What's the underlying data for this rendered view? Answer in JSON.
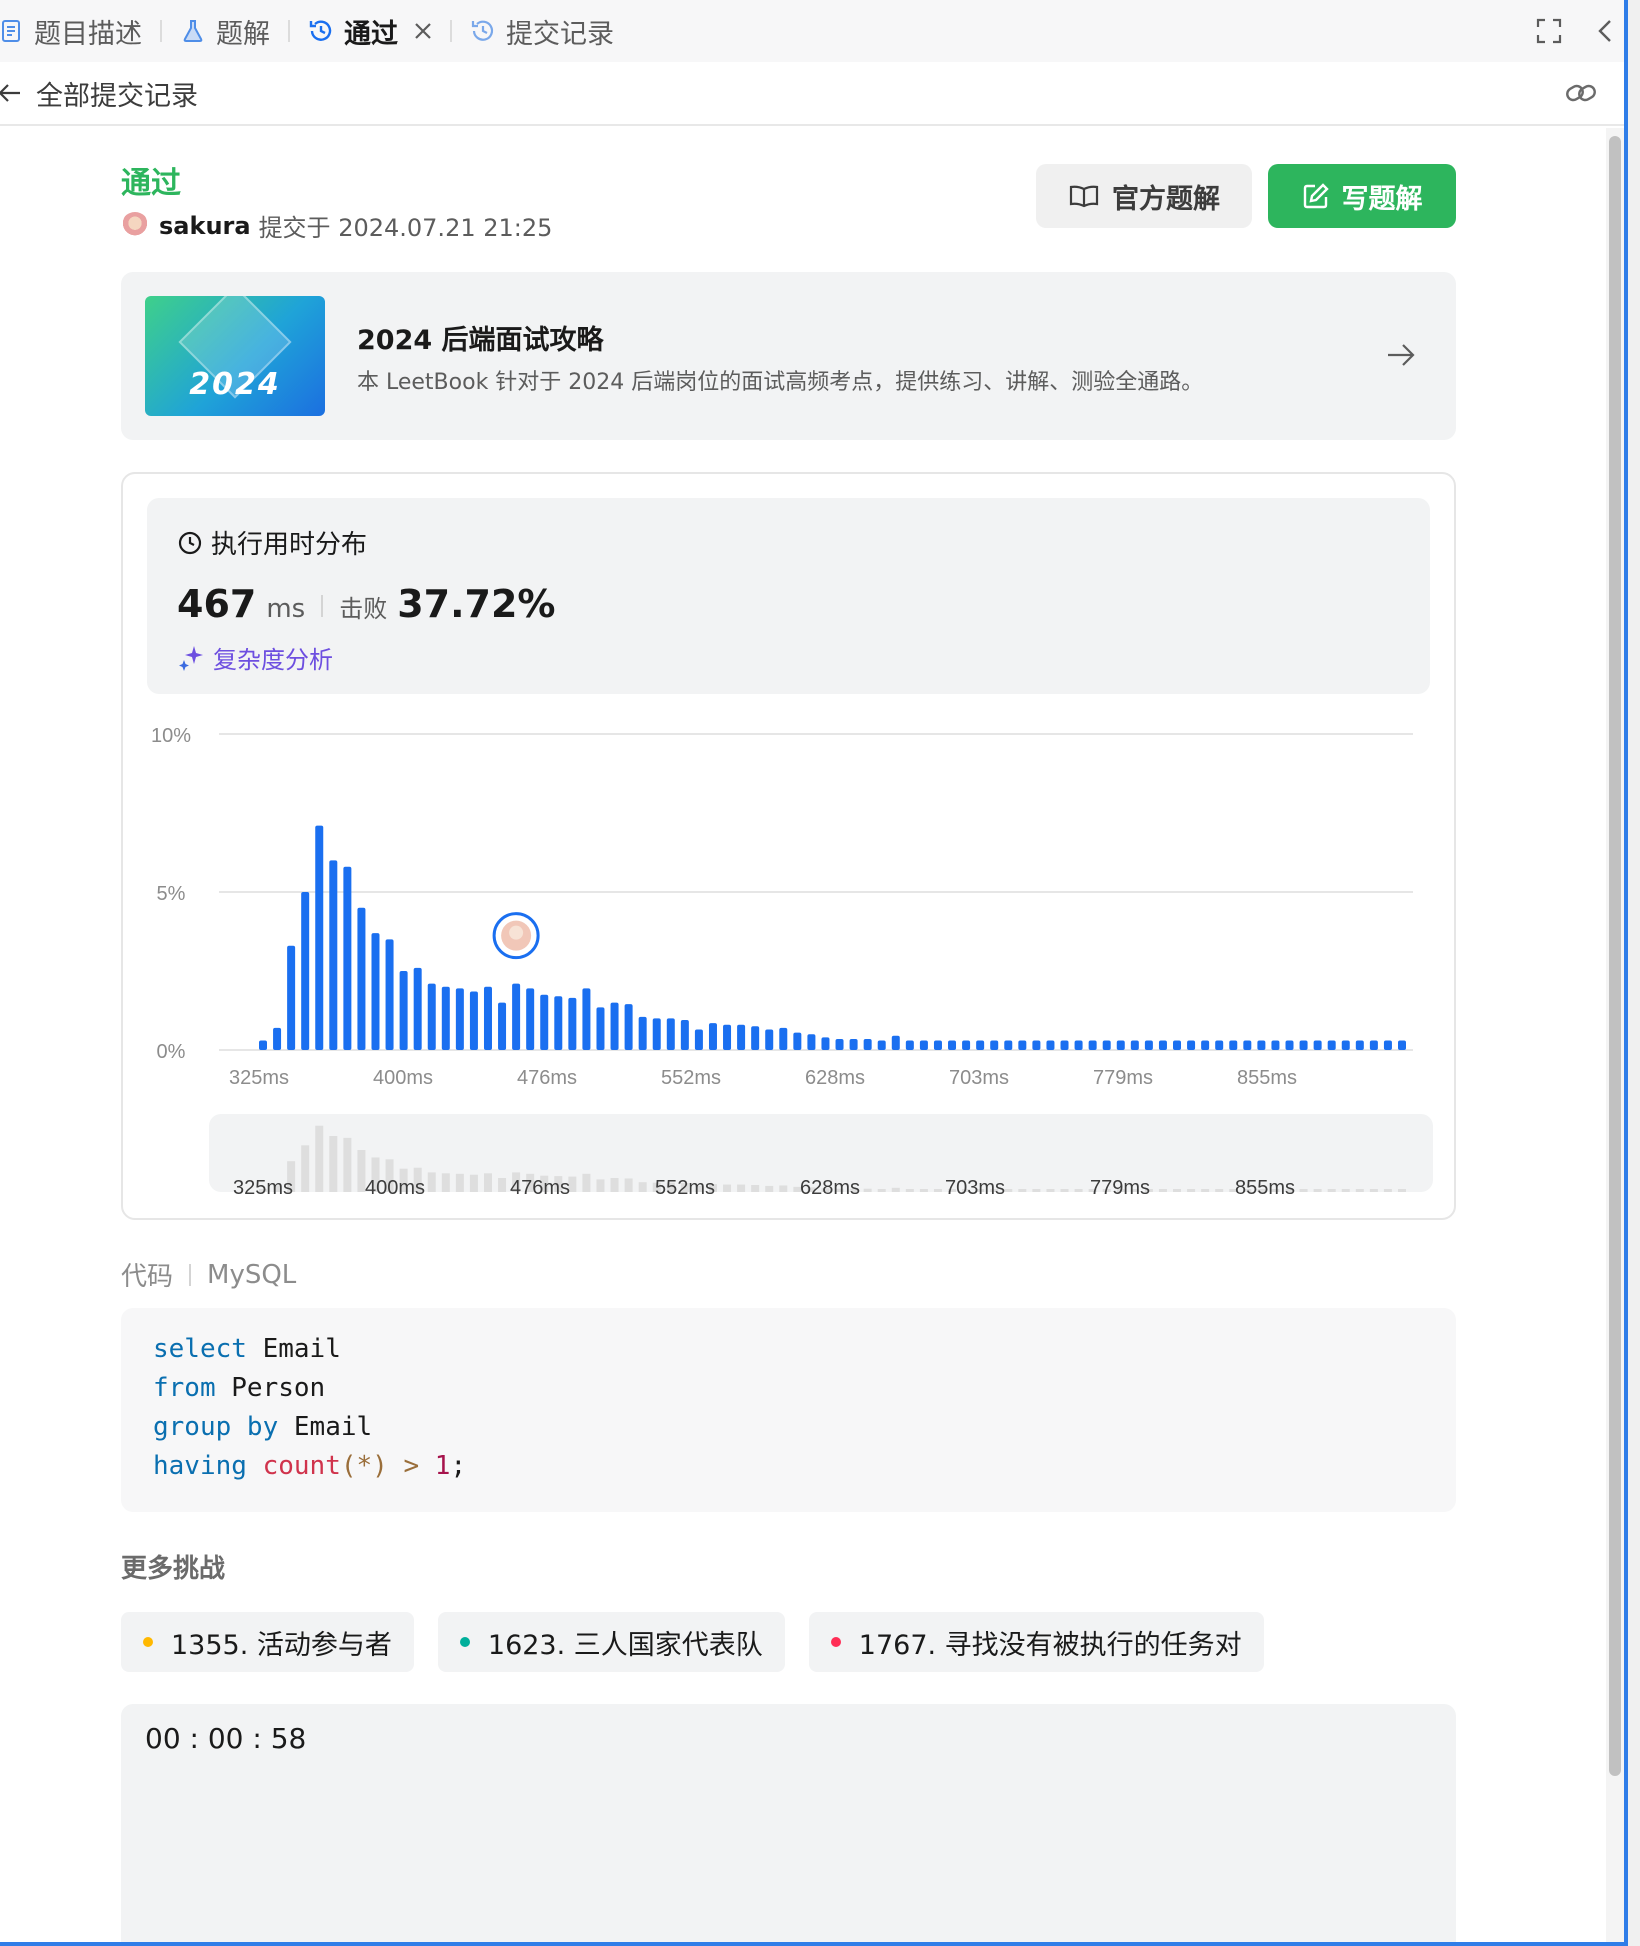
{
  "tabs": [
    {
      "label": "题目描述",
      "icon": "description-icon"
    },
    {
      "label": "题解",
      "icon": "flask-icon"
    },
    {
      "label": "通过",
      "icon": "history-icon",
      "active": true
    },
    {
      "label": "提交记录",
      "icon": "history-icon"
    }
  ],
  "subheader": {
    "back_label": "全部提交记录"
  },
  "submission": {
    "status": "通过",
    "username": "sakura",
    "submitted_text": "提交于 2024.07.21 21:25"
  },
  "buttons": {
    "official": "官方题解",
    "write": "写题解"
  },
  "banner": {
    "title": "2024 后端面试攻略",
    "description": "本 LeetBook 针对于 2024 后端岗位的面试高频考点，提供练习、讲解、测验全通路。",
    "cover_text": "2024"
  },
  "runtime": {
    "heading": "执行用时分布",
    "value": "467",
    "unit": "ms",
    "beat_label": "击败",
    "beat_value": "37.72%",
    "analysis_label": "复杂度分析"
  },
  "chart_data": {
    "type": "bar",
    "ylabel": "",
    "xlabel": "",
    "ylim": [
      0,
      10
    ],
    "y_ticks": [
      "10%",
      "5%",
      "0%"
    ],
    "x_tick_labels": [
      "325ms",
      "400ms",
      "476ms",
      "552ms",
      "628ms",
      "703ms",
      "779ms",
      "855ms"
    ],
    "values": [
      0.3,
      0.7,
      3.3,
      5.0,
      7.1,
      6.0,
      5.8,
      4.5,
      3.7,
      3.5,
      2.5,
      2.6,
      2.1,
      2.0,
      1.95,
      1.85,
      2.0,
      1.5,
      2.1,
      1.95,
      1.75,
      1.7,
      1.65,
      1.95,
      1.35,
      1.5,
      1.45,
      1.05,
      1.0,
      1.0,
      0.95,
      0.65,
      0.85,
      0.8,
      0.8,
      0.75,
      0.65,
      0.7,
      0.55,
      0.5,
      0.4,
      0.35,
      0.35,
      0.35,
      0.3,
      0.45,
      0.3,
      0.3,
      0.3,
      0.3,
      0.3,
      0.3,
      0.3,
      0.3,
      0.3,
      0.3,
      0.3,
      0.3,
      0.3,
      0.3,
      0.3,
      0.3,
      0.3,
      0.3,
      0.3,
      0.3,
      0.3,
      0.3,
      0.3,
      0.3,
      0.3,
      0.3,
      0.3,
      0.3,
      0.3,
      0.3,
      0.3,
      0.3,
      0.3,
      0.3,
      0.3,
      0.3
    ],
    "highlight_index": 18,
    "bar_color": "#1a6ff0",
    "grid": true
  },
  "code": {
    "label": "代码",
    "language": "MySQL",
    "lines": [
      [
        {
          "t": "select",
          "c": "kw"
        },
        {
          "t": " Email",
          "c": "pl"
        }
      ],
      [
        {
          "t": "from",
          "c": "kw"
        },
        {
          "t": " Person",
          "c": "pl"
        }
      ],
      [
        {
          "t": "group by",
          "c": "kw"
        },
        {
          "t": " Email",
          "c": "pl"
        }
      ],
      [
        {
          "t": "having",
          "c": "kw"
        },
        {
          "t": " ",
          "c": "pl"
        },
        {
          "t": "count",
          "c": "fn"
        },
        {
          "t": "(",
          "c": "op"
        },
        {
          "t": "*",
          "c": "op"
        },
        {
          "t": ")",
          "c": "op"
        },
        {
          "t": " > ",
          "c": "op"
        },
        {
          "t": "1",
          "c": "num"
        },
        {
          "t": ";",
          "c": "pl"
        }
      ]
    ]
  },
  "more": {
    "label": "更多挑战",
    "items": [
      {
        "label": "1355. 活动参与者",
        "color": "#ffb800"
      },
      {
        "label": "1623. 三人国家代表队",
        "color": "#00af9b"
      },
      {
        "label": "1767. 寻找没有被执行的任务对",
        "color": "#ff2d55"
      }
    ]
  },
  "timer": "00 : 00 : 58",
  "colors": {
    "accent_green": "#2db55d",
    "accent_blue": "#2f7de8",
    "analysis_purple": "#6d4fe0"
  }
}
